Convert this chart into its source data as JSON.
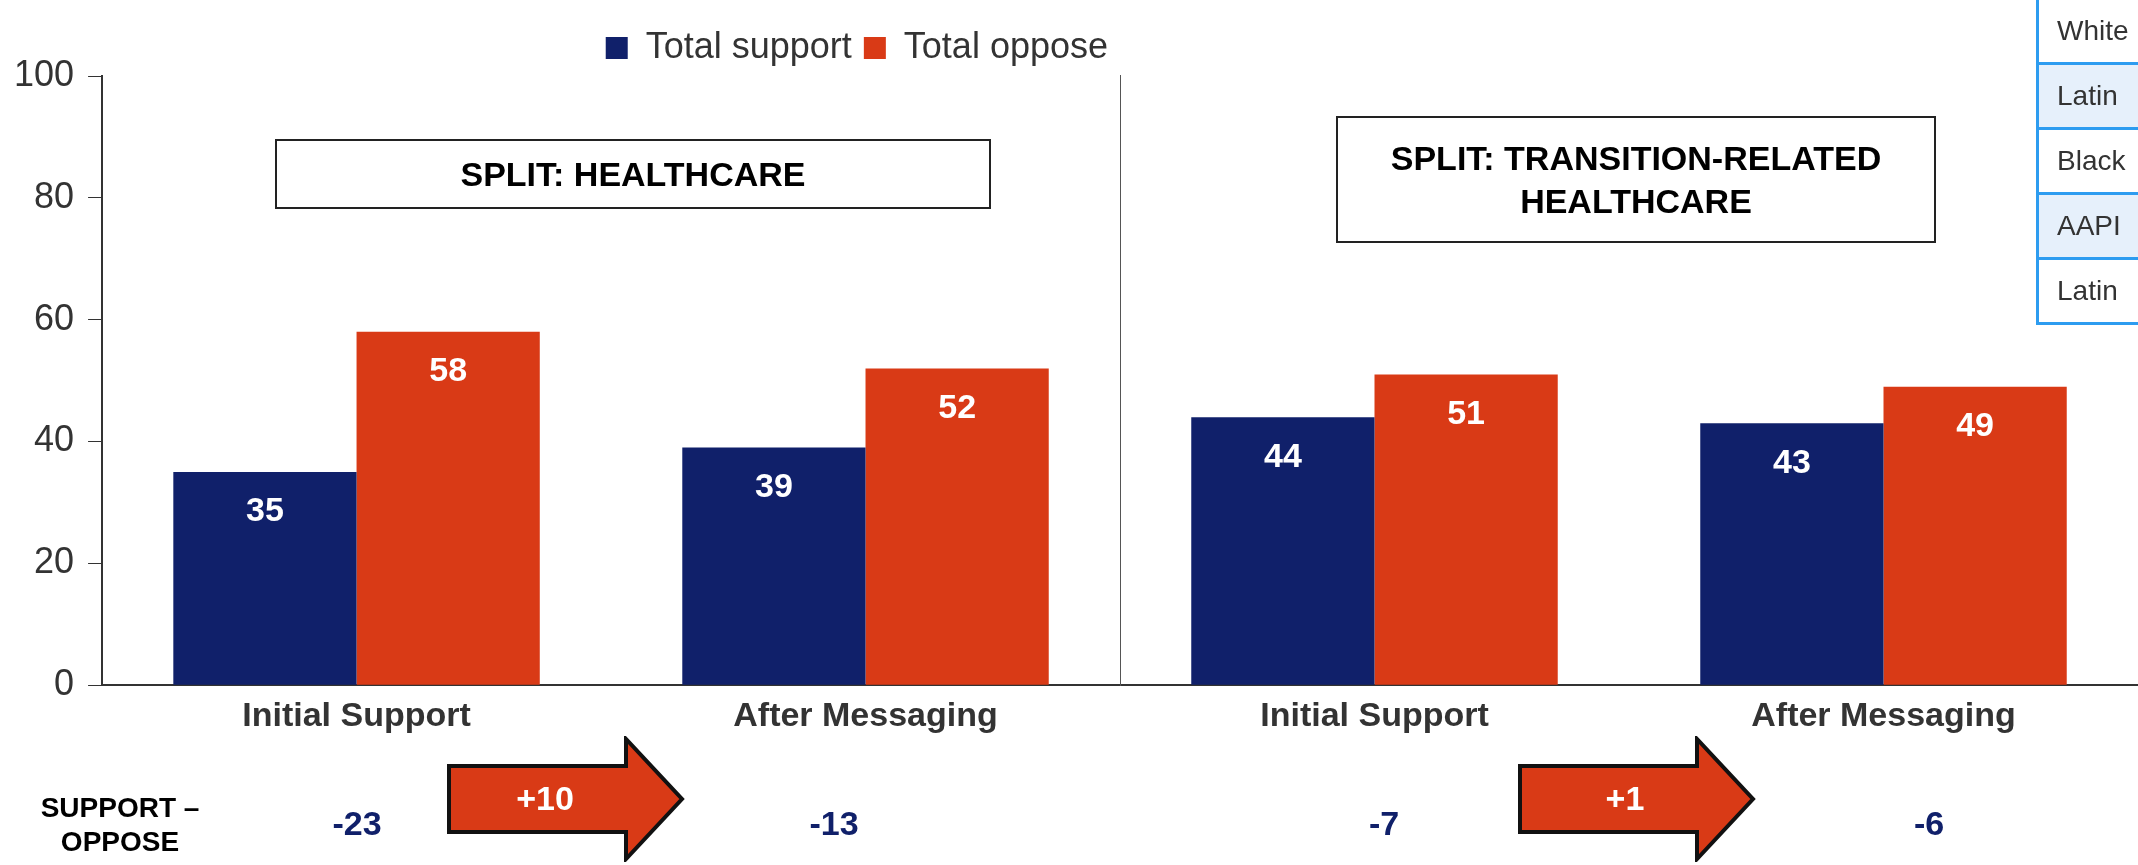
{
  "chart_data": [
    {
      "type": "bar",
      "categories": [
        "Initial Support",
        "After Messaging"
      ],
      "series": [
        {
          "name": "Total support",
          "color": "#10206a",
          "values": [
            35,
            39
          ]
        },
        {
          "name": "Total oppose",
          "color": "#d93a16",
          "values": [
            58,
            52
          ]
        }
      ],
      "ylim": [
        0,
        100
      ],
      "yticks": [
        0,
        20,
        40,
        60,
        80,
        100
      ],
      "legend": "top right",
      "data_labels": true,
      "annotations": [
        "SPLIT: HEALTHCARE",
        "SUPPORT – OPPOSE",
        "-23",
        "+10",
        "-13"
      ]
    },
    {
      "type": "bar",
      "categories": [
        "Initial Support",
        "After Messaging"
      ],
      "series": [
        {
          "color": "#10206a",
          "values": [
            44,
            43
          ]
        },
        {
          "color": "#d93a16",
          "values": [
            51,
            49
          ]
        }
      ],
      "ylim": [
        0,
        100
      ],
      "tick_labels": "x",
      "data_labels": true,
      "annotations": [
        "SPLIT: TRANSITION-RELATED HEALTHCARE",
        "-7",
        "+1",
        "-6",
        "White",
        "Latin",
        "Black",
        "AAPI",
        "Latin"
      ]
    }
  ]
}
